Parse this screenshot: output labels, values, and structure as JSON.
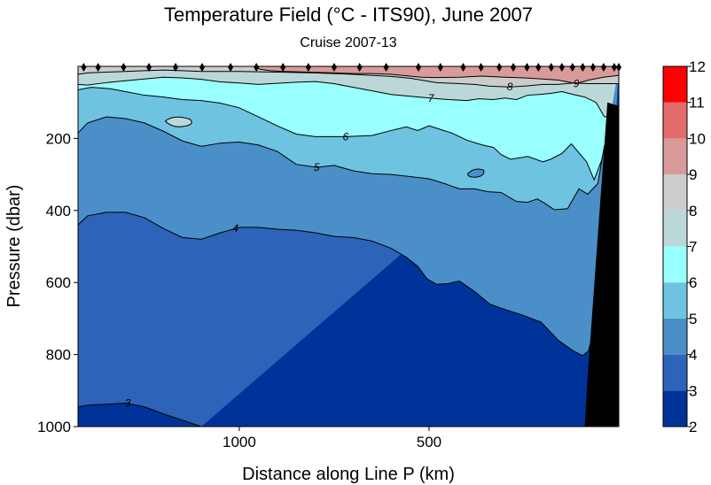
{
  "chart_data": {
    "type": "heatmap",
    "title": "Temperature Field (°C - ITS90),  June 2007",
    "subtitle": "Cruise 2007-13",
    "xlabel": "Distance along Line P  (km)",
    "ylabel": "Pressure  (dbar)",
    "xlim": [
      1425,
      0
    ],
    "ylim": [
      1000,
      0
    ],
    "x_ticks": [
      {
        "value": 1000,
        "label": "1000"
      },
      {
        "value": 500,
        "label": "500"
      }
    ],
    "y_ticks": [
      {
        "value": 200,
        "label": "200"
      },
      {
        "value": 400,
        "label": "400"
      },
      {
        "value": 600,
        "label": "600"
      },
      {
        "value": 800,
        "label": "800"
      },
      {
        "value": 1000,
        "label": "1000"
      }
    ],
    "colorbar": {
      "levels": [
        2,
        3,
        4,
        5,
        6,
        7,
        8,
        9,
        10,
        11,
        12
      ],
      "labels": [
        "2",
        "3",
        "4",
        "5",
        "6",
        "7",
        "8",
        "9",
        "10",
        "11",
        "12"
      ],
      "colors": [
        "#003399",
        "#2d63b8",
        "#4a8fc8",
        "#6ec3e0",
        "#99ffff",
        "#bcd7d7",
        "#cccccc",
        "#d99a9a",
        "#e36b6b",
        "#ff0000",
        "#ffffff"
      ]
    },
    "stations_km": [
      1410,
      1372,
      1305,
      1238,
      1168,
      1098,
      1023,
      955,
      885,
      818,
      750,
      683,
      613,
      528,
      470,
      410,
      363,
      315,
      278,
      242,
      212,
      178,
      150,
      122,
      95,
      68,
      40,
      12,
      0
    ],
    "isotherms": [
      {
        "value": "3",
        "label_x": 1294,
        "label_p": 935,
        "points": [
          [
            1425,
            945
          ],
          [
            1395,
            940
          ],
          [
            1350,
            938
          ],
          [
            1300,
            935
          ],
          [
            1250,
            945
          ],
          [
            1200,
            965
          ],
          [
            1150,
            982
          ],
          [
            1120,
            993
          ],
          [
            1100,
            1000
          ]
        ]
      },
      {
        "value": "4",
        "label_x": 1010,
        "label_p": 450,
        "points": [
          [
            1425,
            440
          ],
          [
            1400,
            415
          ],
          [
            1350,
            405
          ],
          [
            1300,
            405
          ],
          [
            1250,
            420
          ],
          [
            1200,
            450
          ],
          [
            1150,
            475
          ],
          [
            1100,
            480
          ],
          [
            1050,
            462
          ],
          [
            1000,
            447
          ],
          [
            950,
            447
          ],
          [
            900,
            452
          ],
          [
            850,
            455
          ],
          [
            800,
            462
          ],
          [
            750,
            472
          ],
          [
            700,
            475
          ],
          [
            650,
            485
          ],
          [
            600,
            505
          ],
          [
            560,
            530
          ],
          [
            530,
            555
          ],
          [
            505,
            590
          ],
          [
            480,
            605
          ],
          [
            450,
            603
          ],
          [
            420,
            596
          ],
          [
            380,
            625
          ],
          [
            340,
            660
          ],
          [
            300,
            675
          ],
          [
            255,
            690
          ],
          [
            205,
            710
          ],
          [
            160,
            760
          ],
          [
            120,
            790
          ],
          [
            95,
            803
          ],
          [
            80,
            790
          ],
          [
            60,
            710
          ],
          [
            45,
            660
          ],
          [
            32,
            600
          ]
        ]
      },
      {
        "value": "5",
        "label_x": 796,
        "label_p": 280,
        "points": [
          [
            1425,
            185
          ],
          [
            1400,
            157
          ],
          [
            1350,
            140
          ],
          [
            1300,
            145
          ],
          [
            1250,
            157
          ],
          [
            1200,
            180
          ],
          [
            1150,
            207
          ],
          [
            1100,
            222
          ],
          [
            1050,
            213
          ],
          [
            1000,
            210
          ],
          [
            950,
            218
          ],
          [
            900,
            236
          ],
          [
            850,
            272
          ],
          [
            796,
            280
          ],
          [
            750,
            275
          ],
          [
            700,
            290
          ],
          [
            650,
            298
          ],
          [
            600,
            300
          ],
          [
            550,
            306
          ],
          [
            500,
            312
          ],
          [
            460,
            325
          ],
          [
            420,
            340
          ],
          [
            380,
            340
          ],
          [
            345,
            348
          ],
          [
            310,
            350
          ],
          [
            270,
            375
          ],
          [
            240,
            377
          ],
          [
            215,
            368
          ],
          [
            195,
            380
          ],
          [
            170,
            398
          ],
          [
            135,
            395
          ],
          [
            105,
            340
          ],
          [
            82,
            355
          ],
          [
            55,
            325
          ],
          [
            38,
            220
          ]
        ]
      },
      {
        "value": "6",
        "label_x": 720,
        "label_p": 195,
        "points": [
          [
            1425,
            65
          ],
          [
            1390,
            58
          ],
          [
            1340,
            62
          ],
          [
            1300,
            70
          ],
          [
            1250,
            80
          ],
          [
            1200,
            85
          ],
          [
            1150,
            92
          ],
          [
            1100,
            95
          ],
          [
            1050,
            102
          ],
          [
            1000,
            115
          ],
          [
            950,
            140
          ],
          [
            900,
            165
          ],
          [
            850,
            188
          ],
          [
            800,
            195
          ],
          [
            720,
            195
          ],
          [
            650,
            192
          ],
          [
            600,
            178
          ],
          [
            560,
            168
          ],
          [
            530,
            178
          ],
          [
            500,
            165
          ],
          [
            470,
            175
          ],
          [
            440,
            185
          ],
          [
            400,
            205
          ],
          [
            360,
            218
          ],
          [
            330,
            225
          ],
          [
            310,
            245
          ],
          [
            285,
            258
          ],
          [
            240,
            250
          ],
          [
            200,
            265
          ],
          [
            180,
            258
          ],
          [
            150,
            242
          ],
          [
            125,
            215
          ],
          [
            105,
            240
          ],
          [
            85,
            265
          ],
          [
            65,
            315
          ],
          [
            45,
            260
          ],
          [
            30,
            185
          ]
        ]
      },
      {
        "value": "7",
        "label_x": 495,
        "label_p": 88,
        "points": [
          [
            1425,
            50
          ],
          [
            1400,
            52
          ],
          [
            1350,
            45
          ],
          [
            1300,
            40
          ],
          [
            1250,
            35
          ],
          [
            1200,
            30
          ],
          [
            1150,
            32
          ],
          [
            1100,
            36
          ],
          [
            1050,
            43
          ],
          [
            1000,
            46
          ],
          [
            950,
            50
          ],
          [
            900,
            47
          ],
          [
            850,
            44
          ],
          [
            800,
            42
          ],
          [
            750,
            48
          ],
          [
            700,
            58
          ],
          [
            650,
            68
          ],
          [
            600,
            78
          ],
          [
            550,
            83
          ],
          [
            495,
            88
          ],
          [
            450,
            92
          ],
          [
            400,
            95
          ],
          [
            370,
            90
          ],
          [
            330,
            92
          ],
          [
            300,
            88
          ],
          [
            270,
            92
          ],
          [
            240,
            80
          ],
          [
            210,
            78
          ],
          [
            180,
            75
          ],
          [
            150,
            70
          ],
          [
            120,
            78
          ],
          [
            90,
            85
          ],
          [
            60,
            100
          ],
          [
            38,
            140
          ],
          [
            25,
            140
          ]
        ]
      },
      {
        "value": "8",
        "label_x": 287,
        "label_p": 57,
        "points": [
          [
            1425,
            22
          ],
          [
            1400,
            18
          ],
          [
            1350,
            16
          ],
          [
            1300,
            14
          ],
          [
            1250,
            12
          ],
          [
            1200,
            10
          ],
          [
            1150,
            12
          ],
          [
            1100,
            14
          ],
          [
            1000,
            14
          ],
          [
            900,
            16
          ],
          [
            800,
            18
          ],
          [
            700,
            22
          ],
          [
            600,
            28
          ],
          [
            550,
            33
          ],
          [
            480,
            45
          ],
          [
            420,
            48
          ],
          [
            380,
            50
          ],
          [
            340,
            55
          ],
          [
            287,
            57
          ],
          [
            240,
            54
          ],
          [
            200,
            50
          ],
          [
            160,
            50
          ],
          [
            120,
            46
          ],
          [
            80,
            48
          ],
          [
            50,
            48
          ],
          [
            20,
            48
          ],
          [
            0,
            48
          ]
        ]
      },
      {
        "value": "9",
        "label_x": 112,
        "label_p": 48,
        "points": [
          [
            1425,
            0
          ],
          [
            960,
            0
          ],
          [
            945,
            8
          ],
          [
            920,
            12
          ],
          [
            880,
            14
          ],
          [
            820,
            16
          ],
          [
            750,
            18
          ],
          [
            700,
            20
          ],
          [
            650,
            20
          ],
          [
            600,
            22
          ],
          [
            560,
            26
          ],
          [
            520,
            30
          ],
          [
            480,
            31
          ],
          [
            420,
            30
          ],
          [
            360,
            27
          ],
          [
            300,
            30
          ],
          [
            250,
            32
          ],
          [
            200,
            35
          ],
          [
            160,
            38
          ],
          [
            112,
            48
          ],
          [
            80,
            38
          ],
          [
            40,
            30
          ],
          [
            0,
            25
          ]
        ]
      }
    ],
    "colors": {
      "bathymetry": "#000000",
      "contour_line": "#000000",
      "marker": "#000000"
    }
  }
}
